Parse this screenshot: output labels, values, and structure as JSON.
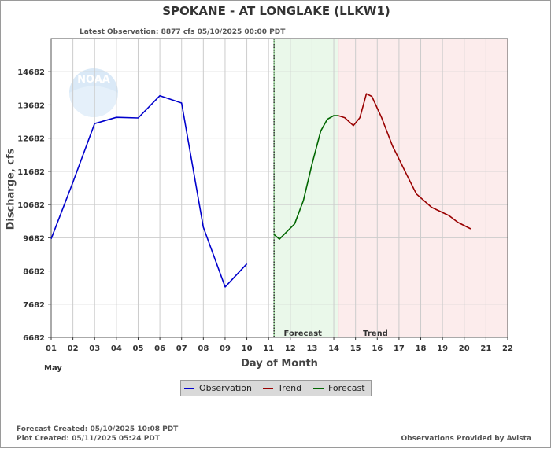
{
  "title": "SPOKANE - AT LONGLAKE  (LLKW1)",
  "latest_observation": "Latest Observation: 8877 cfs 05/10/2025 00:00 PDT",
  "xlabel": "Day of Month",
  "ylabel": "Discharge, cfs",
  "month_label": "May",
  "forecast_created": "Forecast Created: 05/10/2025 10:08 PDT",
  "plot_created": "Plot Created: 05/11/2025 05:24 PDT",
  "provided_by": "Observations Provided by Avista",
  "logo_text": "NOAA",
  "legend": [
    {
      "label": "Observation",
      "color": "#0000cc"
    },
    {
      "label": "Trend",
      "color": "#990000"
    },
    {
      "label": "Forecast",
      "color": "#006600"
    }
  ],
  "chart_data": {
    "type": "line",
    "xlabel": "Day of Month",
    "ylabel": "Discharge, cfs",
    "xlim": [
      1,
      22
    ],
    "ylim": [
      6682,
      15682
    ],
    "x_ticks": [
      "01",
      "02",
      "03",
      "04",
      "05",
      "06",
      "07",
      "08",
      "09",
      "10",
      "11",
      "12",
      "13",
      "14",
      "15",
      "16",
      "17",
      "18",
      "19",
      "20",
      "21",
      "22"
    ],
    "y_ticks": [
      "6682",
      "7682",
      "8682",
      "9682",
      "10682",
      "11682",
      "12682",
      "13682",
      "14682"
    ],
    "grid": true,
    "observation_time_day": 11.25,
    "regions": [
      {
        "label": "Forecast",
        "from": 11.25,
        "to": 14.2,
        "color": "#eaf8ea"
      },
      {
        "label": "Trend",
        "from": 14.2,
        "to": 22,
        "color": "#fcecec"
      }
    ],
    "series": [
      {
        "name": "Observation",
        "color": "#0000cc",
        "points": [
          [
            1,
            9650
          ],
          [
            2,
            11350
          ],
          [
            3,
            13120
          ],
          [
            4,
            13310
          ],
          [
            5,
            13290
          ],
          [
            6,
            13960
          ],
          [
            7,
            13740
          ],
          [
            8,
            10000
          ],
          [
            9,
            8200
          ],
          [
            10,
            8900
          ]
        ]
      },
      {
        "name": "Forecast",
        "color": "#006600",
        "points": [
          [
            11.25,
            9780
          ],
          [
            11.5,
            9640
          ],
          [
            12.2,
            10100
          ],
          [
            12.6,
            10800
          ],
          [
            13.0,
            11900
          ],
          [
            13.4,
            12900
          ],
          [
            13.7,
            13250
          ],
          [
            14.0,
            13360
          ],
          [
            14.2,
            13360
          ]
        ]
      },
      {
        "name": "Trend",
        "color": "#990000",
        "points": [
          [
            14.2,
            13360
          ],
          [
            14.5,
            13300
          ],
          [
            14.9,
            13060
          ],
          [
            15.2,
            13300
          ],
          [
            15.5,
            14020
          ],
          [
            15.75,
            13940
          ],
          [
            16.2,
            13300
          ],
          [
            16.7,
            12450
          ],
          [
            17.3,
            11650
          ],
          [
            17.8,
            11000
          ],
          [
            18.5,
            10600
          ],
          [
            19.3,
            10350
          ],
          [
            19.7,
            10150
          ],
          [
            20.3,
            9950
          ]
        ]
      }
    ]
  }
}
